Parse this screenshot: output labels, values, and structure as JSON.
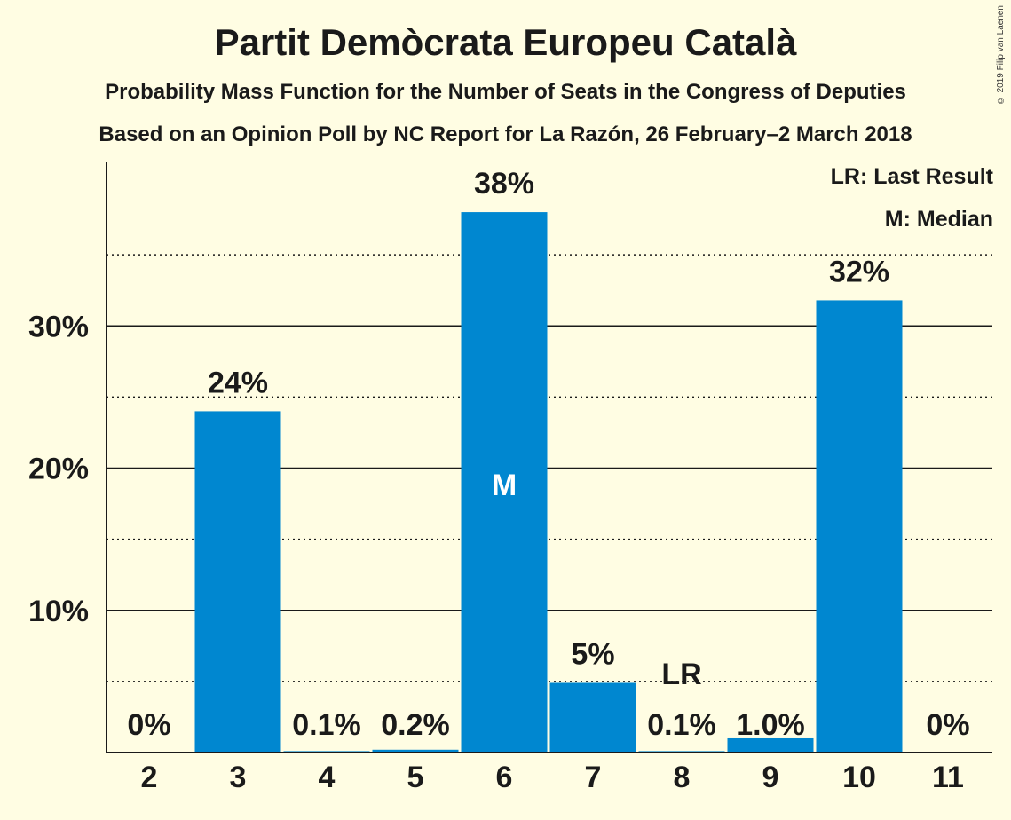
{
  "title": "Partit Demòcrata Europeu Català",
  "subtitle1": "Probability Mass Function for the Number of Seats in the Congress of Deputies",
  "subtitle2": "Based on an Opinion Poll by NC Report for La Razón, 26 February–2 March 2018",
  "legend": {
    "last_result": "LR: Last Result",
    "median": "M: Median"
  },
  "copyright": "© 2019 Filip van Laenen",
  "colors": {
    "bar": "#0087d0",
    "background": "#fffde3",
    "text": "#1a1a1a"
  },
  "chart_data": {
    "type": "bar",
    "categories": [
      "2",
      "3",
      "4",
      "5",
      "6",
      "7",
      "8",
      "9",
      "10",
      "11"
    ],
    "values": [
      0,
      24,
      0.1,
      0.2,
      38,
      4.9,
      0.1,
      1.0,
      31.8,
      0
    ],
    "labels": [
      "0%",
      "24%",
      "0.1%",
      "0.2%",
      "38%",
      "5%",
      "0.1%",
      "1.0%",
      "32%",
      "0%"
    ],
    "ylim": [
      0,
      41.5
    ],
    "yticks": [
      10,
      20,
      30
    ],
    "ytick_labels": [
      "10%",
      "20%",
      "30%"
    ],
    "minor_gridlines": [
      5,
      15,
      25,
      35
    ],
    "median_category": "6",
    "median_marker": "M",
    "last_result_category": "8",
    "last_result_marker": "LR",
    "grid": true,
    "legend_position": "top-right"
  }
}
